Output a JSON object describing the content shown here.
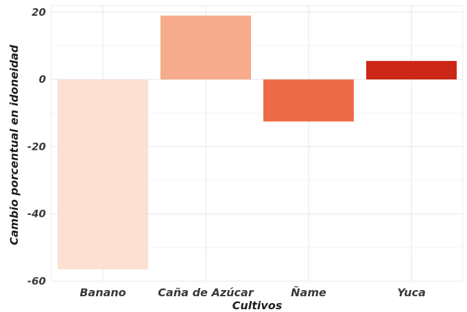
{
  "chart_data": {
    "type": "bar",
    "title": "",
    "xlabel": "Cultivos",
    "ylabel": "Cambio porcentual en idoneidad",
    "categories": [
      "Banano",
      "Caña de Azúcar",
      "Ñame",
      "Yuca"
    ],
    "values": [
      -56.5,
      19,
      -12.5,
      5.5
    ],
    "colors": [
      "#fbe0d3",
      "#f5ab8c",
      "#ee6b48",
      "#cc2716"
    ],
    "ylim": [
      -60,
      22
    ],
    "yticks": [
      20,
      0,
      -20,
      -40,
      -60
    ],
    "ytick_labels": [
      "20",
      "0",
      "-20",
      "-40",
      "-60"
    ],
    "grid": true,
    "legend": "none"
  }
}
